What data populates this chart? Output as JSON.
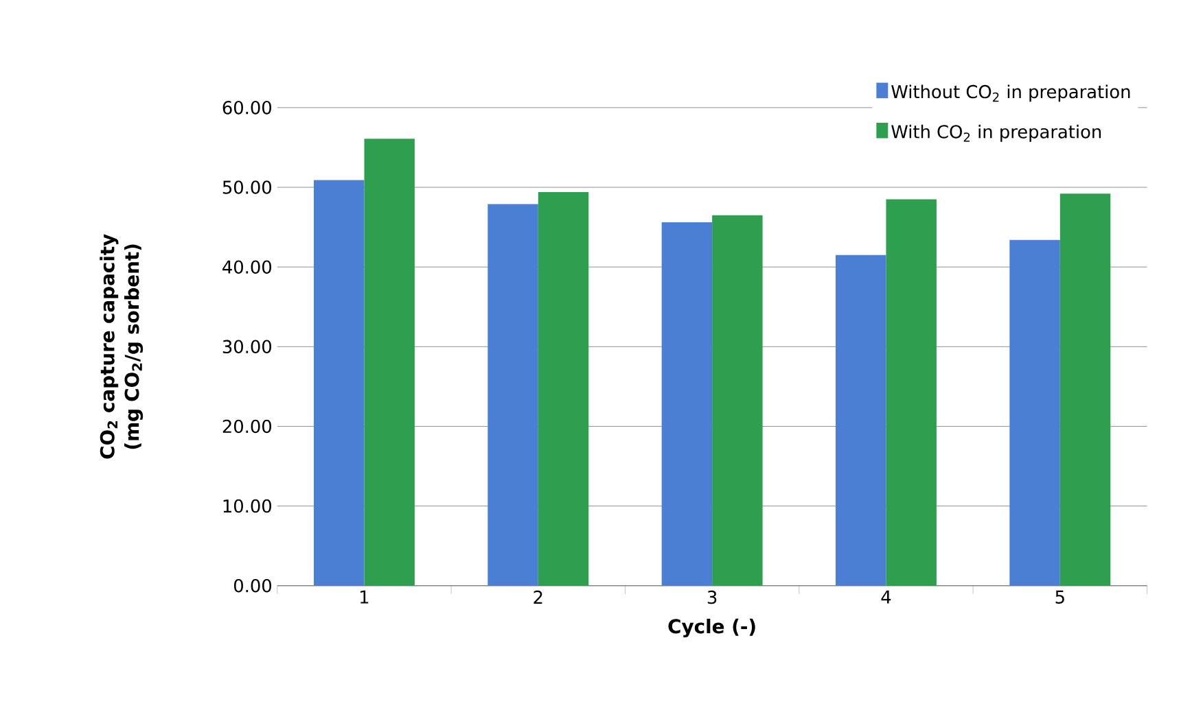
{
  "chart_data": {
    "type": "bar",
    "xlabel": "Cycle (-)",
    "ylabel": "CO$_{2}$ capture capacity (mg CO$_{2}$/g sorbent)",
    "categories": [
      "1",
      "2",
      "3",
      "4",
      "5"
    ],
    "series": [
      {
        "name": "Without CO$_{2}$ in preparation",
        "color": "#4a7fd4",
        "values": [
          50.9,
          47.9,
          45.6,
          41.5,
          43.4
        ]
      },
      {
        "name": "With CO$_{2}$ in preparation",
        "color": "#2e9e4f",
        "values": [
          56.1,
          49.4,
          46.5,
          48.5,
          49.2
        ]
      }
    ],
    "ylim": [
      0,
      60
    ],
    "yticks": [
      {
        "value": 0,
        "label": "0.00"
      },
      {
        "value": 10,
        "label": "10.00"
      },
      {
        "value": 20,
        "label": "20.00"
      },
      {
        "value": 30,
        "label": "30.00"
      },
      {
        "value": 40,
        "label": "40.00"
      },
      {
        "value": 50,
        "label": "50.00"
      },
      {
        "value": 60,
        "label": "60.00"
      }
    ],
    "grid": "y",
    "legend": "top right"
  }
}
